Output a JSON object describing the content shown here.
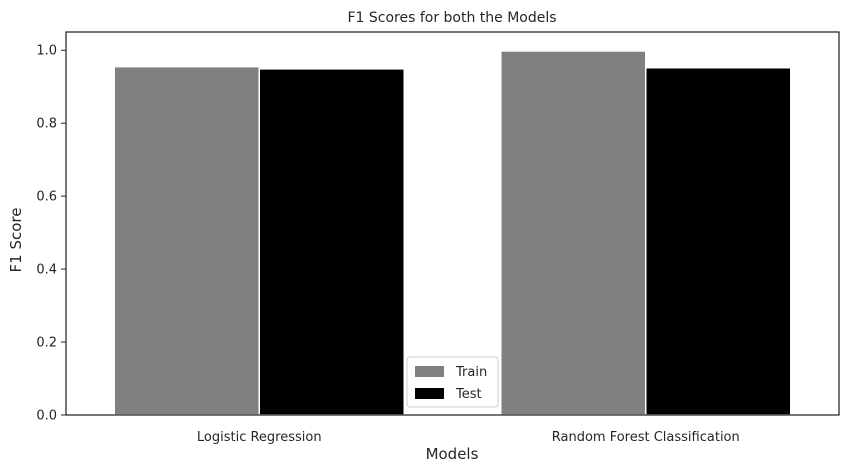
{
  "chart_data": {
    "type": "bar",
    "title": "F1 Scores for both the Models",
    "xlabel": "Models",
    "ylabel": "F1 Score",
    "categories": [
      "Logistic Regression",
      "Random Forest Classification"
    ],
    "series": [
      {
        "name": "Train",
        "values": [
          0.955,
          0.998
        ],
        "color": "#808080"
      },
      {
        "name": "Test",
        "values": [
          0.949,
          0.952
        ],
        "color": "#000000"
      }
    ],
    "ylim": [
      0,
      1.05
    ],
    "yticks": [
      "0.0",
      "0.2",
      "0.4",
      "0.6",
      "0.8",
      "1.0"
    ],
    "grid": false,
    "legend_position": "bottom-center"
  }
}
